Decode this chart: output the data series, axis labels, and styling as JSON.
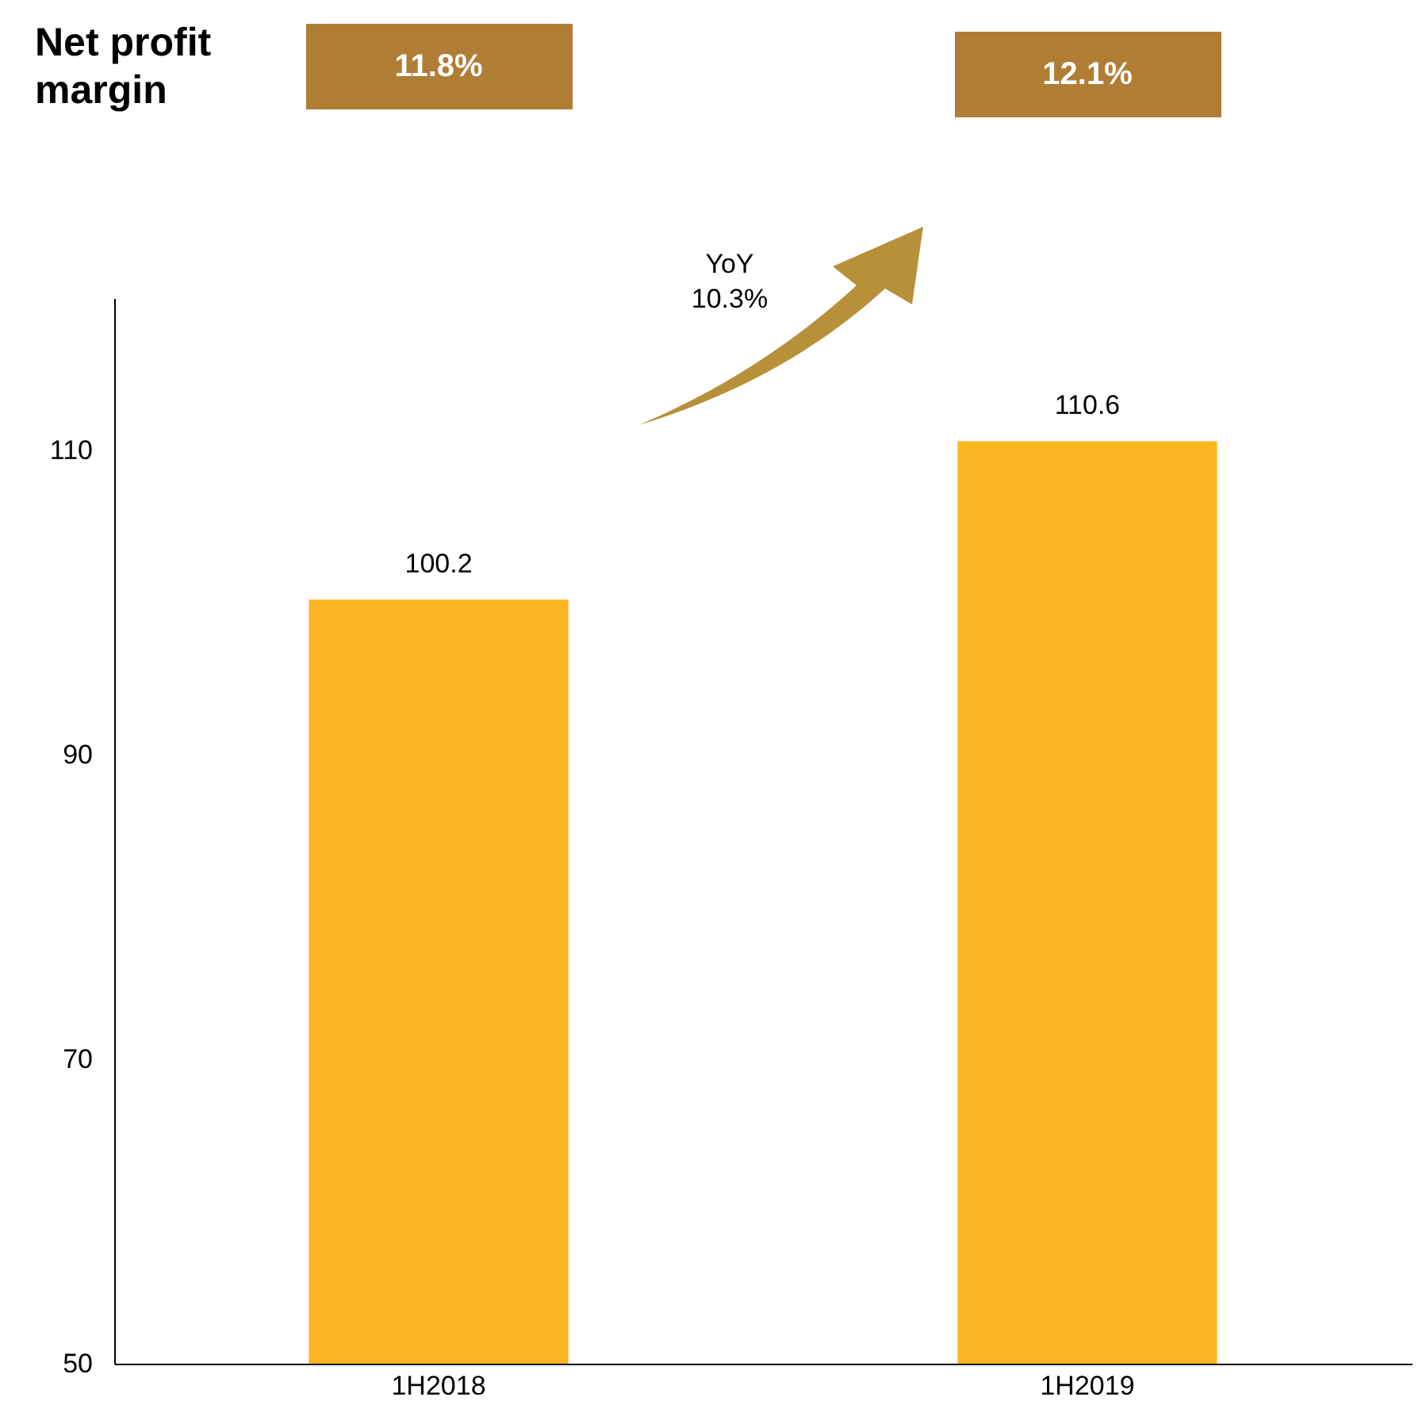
{
  "chart_data": {
    "type": "bar",
    "categories": [
      "1H2018",
      "1H2019"
    ],
    "values": [
      100.2,
      110.6
    ],
    "color": "#fbb522",
    "ylim": [
      50,
      120
    ],
    "yticks": [
      50,
      70,
      90,
      110
    ],
    "data_labels": true,
    "annotations": [
      "Net profit margin",
      "11.8%",
      "12.1%",
      "YoY\n10.3%"
    ]
  }
}
